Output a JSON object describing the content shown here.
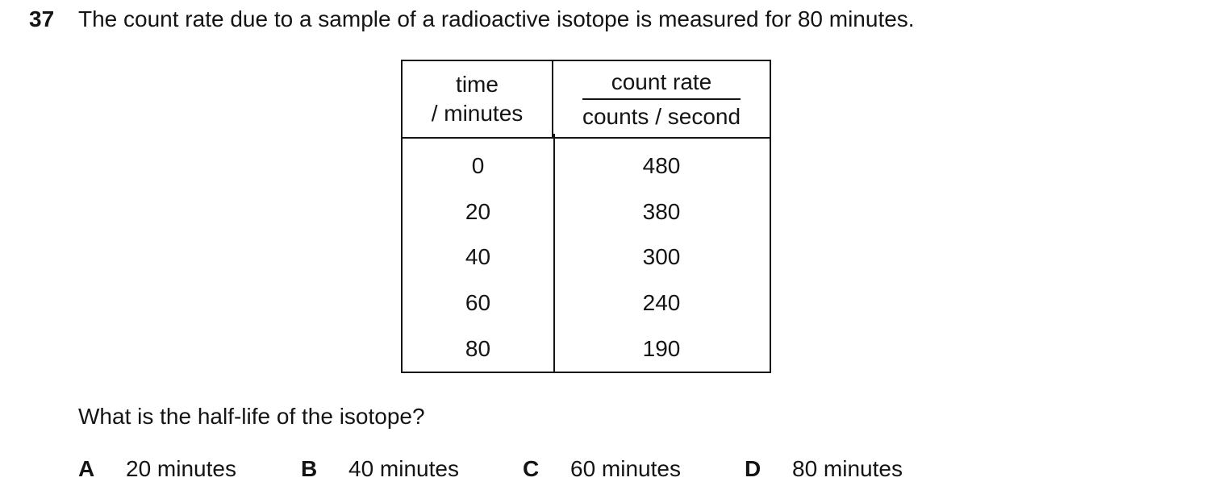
{
  "question": {
    "number": "37",
    "text": "The count rate due to a sample of a radioactive isotope is measured for 80 minutes.",
    "prompt": "What is the half-life of the isotope?"
  },
  "table": {
    "time_header_line1": "time",
    "time_header_line2": "/ minutes",
    "rate_header_numerator": "count rate",
    "rate_header_denominator": "counts / second",
    "rows": [
      {
        "time": "0",
        "rate": "480"
      },
      {
        "time": "20",
        "rate": "380"
      },
      {
        "time": "40",
        "rate": "300"
      },
      {
        "time": "60",
        "rate": "240"
      },
      {
        "time": "80",
        "rate": "190"
      }
    ]
  },
  "options": [
    {
      "letter": "A",
      "text": "20 minutes"
    },
    {
      "letter": "B",
      "text": "40 minutes"
    },
    {
      "letter": "C",
      "text": "60 minutes"
    },
    {
      "letter": "D",
      "text": "80 minutes"
    }
  ],
  "colors": {
    "background": "#ffffff",
    "text": "#141414",
    "border": "#141414"
  }
}
